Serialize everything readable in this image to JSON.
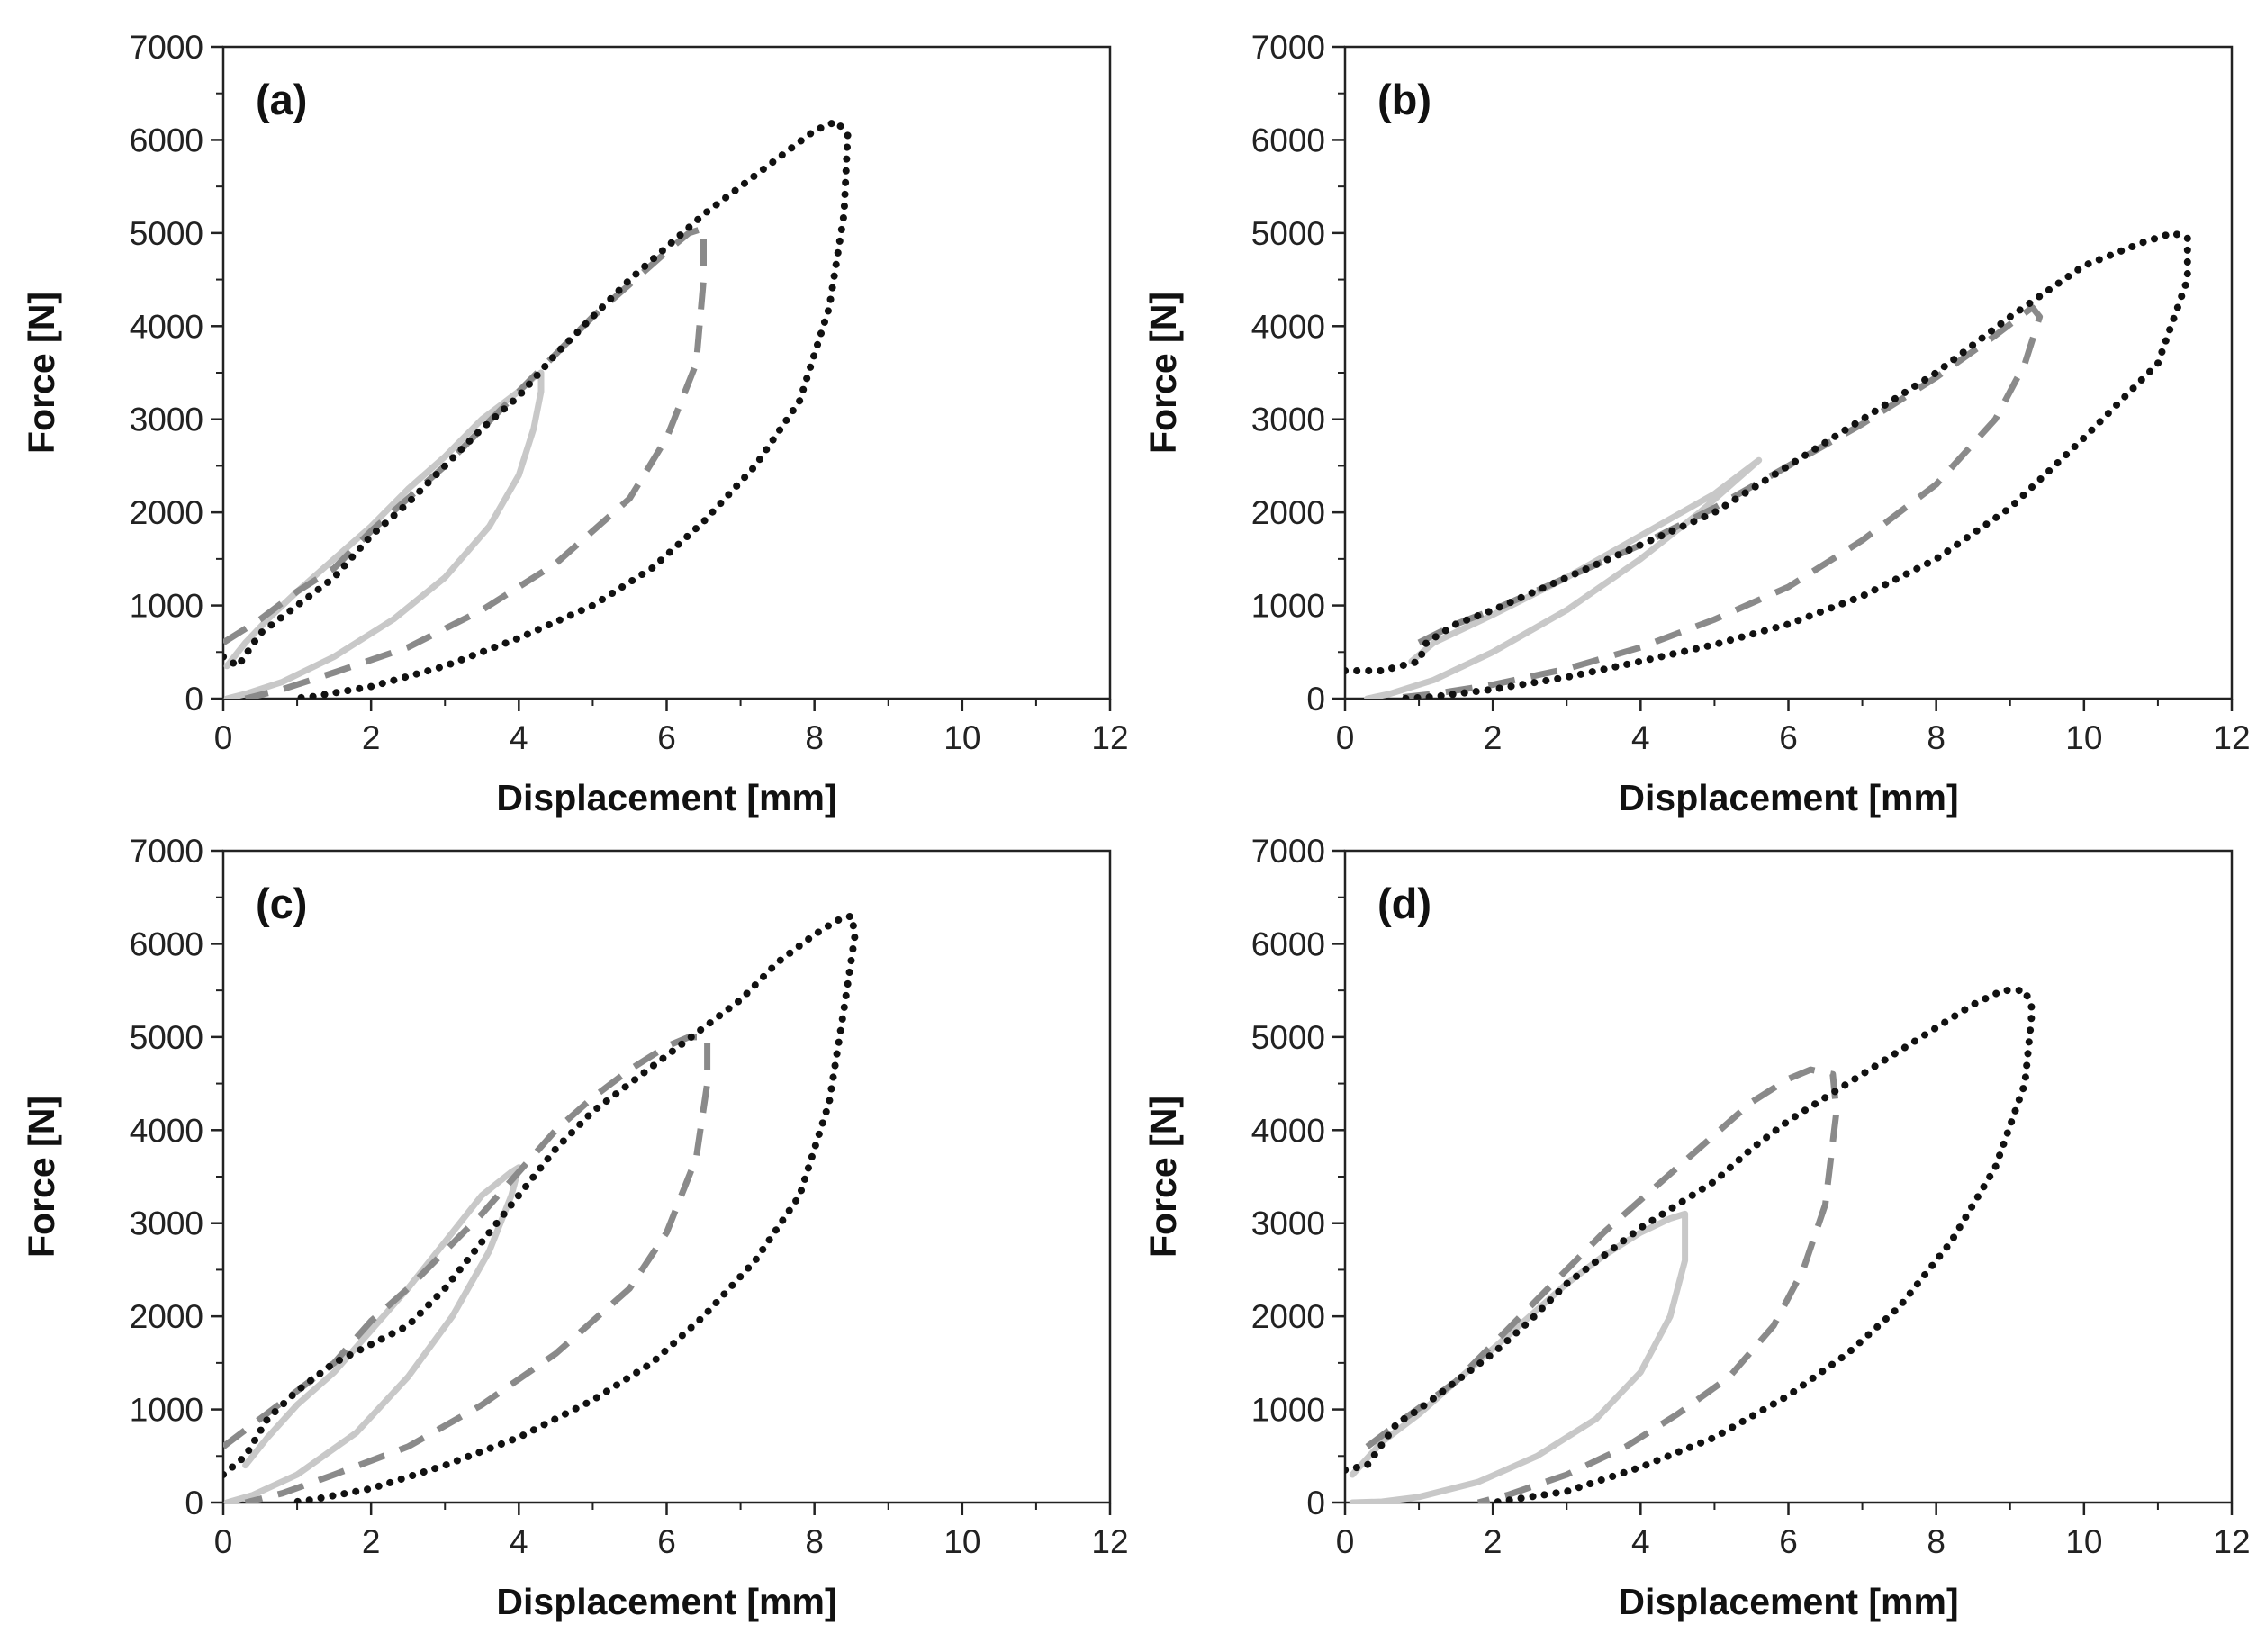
{
  "styles": {
    "solid": {
      "color": "#c8c8c8",
      "dash": "none",
      "width": 7
    },
    "dashed": {
      "color": "#8a8a8a",
      "dash": "30 18",
      "width": 7
    },
    "dotted": {
      "color": "#111111",
      "dash": "0.1 13",
      "width": 8
    }
  },
  "chart_data": [
    {
      "panel": "(a)",
      "type": "line",
      "xlabel": "Displacement [mm]",
      "ylabel": "Force [N]",
      "xlim": [
        0,
        12
      ],
      "ylim": [
        0,
        7000
      ],
      "xticks": [
        "0",
        "2",
        "4",
        "6",
        "8",
        "10",
        "12"
      ],
      "yticks": [
        "0",
        "1000",
        "2000",
        "3000",
        "4000",
        "5000",
        "6000",
        "7000"
      ],
      "grid": false,
      "series": [
        {
          "style": "solid",
          "x": [
            0.05,
            0.3,
            0.6,
            1.0,
            1.5,
            2.0,
            2.5,
            3.0,
            3.5,
            4.0,
            4.2,
            4.3,
            4.3,
            4.2,
            4.0,
            3.6,
            3.0,
            2.3,
            1.5,
            0.8,
            0.3,
            0.05
          ],
          "y": [
            350,
            600,
            850,
            1150,
            1500,
            1850,
            2250,
            2600,
            3000,
            3300,
            3450,
            3500,
            3300,
            2900,
            2400,
            1850,
            1300,
            850,
            450,
            180,
            50,
            0
          ]
        },
        {
          "style": "dashed",
          "x": [
            0,
            0.5,
            1.0,
            1.5,
            2.0,
            2.5,
            3.0,
            3.5,
            4.0,
            4.5,
            5.0,
            5.5,
            6.0,
            6.3,
            6.5,
            6.5,
            6.4,
            6.0,
            5.5,
            4.5,
            3.5,
            2.5,
            1.5,
            0.8,
            0.3
          ],
          "y": [
            600,
            850,
            1150,
            1400,
            1800,
            2150,
            2500,
            2900,
            3300,
            3700,
            4100,
            4450,
            4800,
            5000,
            5050,
            4500,
            3600,
            2800,
            2150,
            1450,
            950,
            550,
            280,
            100,
            0
          ]
        },
        {
          "style": "dotted",
          "x": [
            0,
            0.2,
            0.5,
            1.0,
            1.5,
            2.0,
            2.5,
            3.0,
            3.5,
            4.0,
            4.5,
            5.0,
            5.5,
            6.0,
            6.5,
            7.0,
            7.5,
            8.0,
            8.3,
            8.45,
            8.4,
            8.2,
            7.8,
            7.2,
            6.5,
            5.8,
            5.0,
            4.0,
            3.0,
            2.0,
            1.2,
            0.9
          ],
          "y": [
            450,
            350,
            700,
            1000,
            1300,
            1750,
            2100,
            2500,
            2900,
            3250,
            3700,
            4100,
            4500,
            4850,
            5200,
            5500,
            5800,
            6100,
            6200,
            6050,
            5200,
            4200,
            3200,
            2500,
            1900,
            1400,
            1000,
            650,
            350,
            130,
            20,
            0
          ]
        }
      ]
    },
    {
      "panel": "(b)",
      "type": "line",
      "xlabel": "Displacement [mm]",
      "ylabel": "Force [N]",
      "xlim": [
        0,
        12
      ],
      "ylim": [
        0,
        7000
      ],
      "xticks": [
        "0",
        "2",
        "4",
        "6",
        "8",
        "10",
        "12"
      ],
      "yticks": [
        "0",
        "1000",
        "2000",
        "3000",
        "4000",
        "5000",
        "6000",
        "7000"
      ],
      "grid": false,
      "series": [
        {
          "style": "solid",
          "x": [
            0.9,
            1.2,
            2.0,
            3.0,
            4.0,
            5.0,
            5.5,
            5.6,
            5.3,
            4.8,
            4.0,
            3.0,
            2.0,
            1.2,
            0.6,
            0.3
          ],
          "y": [
            400,
            600,
            900,
            1300,
            1750,
            2200,
            2500,
            2560,
            2350,
            2000,
            1500,
            950,
            500,
            200,
            50,
            0
          ]
        },
        {
          "style": "dashed",
          "x": [
            1.0,
            1.5,
            2.0,
            3.0,
            4.0,
            5.0,
            6.0,
            7.0,
            8.0,
            8.8,
            9.3,
            9.4,
            9.2,
            8.8,
            8.0,
            7.0,
            6.0,
            5.0,
            4.0,
            3.0,
            2.0,
            1.2,
            0.6
          ],
          "y": [
            600,
            800,
            950,
            1300,
            1650,
            2050,
            2500,
            2950,
            3450,
            3900,
            4200,
            4100,
            3600,
            3000,
            2300,
            1700,
            1200,
            850,
            550,
            320,
            150,
            50,
            0
          ]
        },
        {
          "style": "dotted",
          "x": [
            0,
            0.5,
            1.0,
            1.1,
            1.5,
            2.0,
            3.0,
            4.0,
            5.0,
            6.0,
            7.0,
            8.0,
            9.0,
            10.0,
            10.8,
            11.2,
            11.4,
            11.4,
            11.0,
            10.0,
            9.0,
            8.0,
            7.0,
            6.0,
            5.0,
            4.0,
            3.0,
            2.0,
            1.2,
            0.8
          ],
          "y": [
            300,
            300,
            400,
            600,
            800,
            950,
            1300,
            1650,
            2000,
            2500,
            3000,
            3500,
            4100,
            4650,
            4900,
            5000,
            4950,
            4500,
            3600,
            2800,
            2050,
            1500,
            1100,
            800,
            580,
            400,
            230,
            100,
            20,
            0
          ]
        }
      ]
    },
    {
      "panel": "(c)",
      "type": "line",
      "xlabel": "Displacement [mm]",
      "ylabel": "Force [N]",
      "xlim": [
        0,
        12
      ],
      "ylim": [
        0,
        7000
      ],
      "xticks": [
        "0",
        "2",
        "4",
        "6",
        "8",
        "10",
        "12"
      ],
      "yticks": [
        "0",
        "1000",
        "2000",
        "3000",
        "4000",
        "5000",
        "6000",
        "7000"
      ],
      "grid": false,
      "series": [
        {
          "style": "solid",
          "x": [
            0.3,
            0.6,
            1.0,
            1.5,
            2.0,
            2.5,
            3.0,
            3.5,
            3.9,
            4.0,
            3.9,
            3.6,
            3.1,
            2.5,
            1.8,
            1.0,
            0.4,
            0.05
          ],
          "y": [
            400,
            700,
            1050,
            1400,
            1850,
            2300,
            2800,
            3300,
            3550,
            3600,
            3300,
            2700,
            2000,
            1350,
            750,
            300,
            80,
            0
          ]
        },
        {
          "style": "dashed",
          "x": [
            0,
            0.5,
            1.0,
            1.5,
            2.0,
            2.5,
            3.0,
            3.5,
            4.0,
            4.5,
            5.0,
            5.5,
            6.0,
            6.3,
            6.55,
            6.55,
            6.4,
            6.0,
            5.5,
            4.5,
            3.5,
            2.5,
            1.5,
            0.8,
            0.3
          ],
          "y": [
            600,
            900,
            1200,
            1500,
            1950,
            2300,
            2700,
            3100,
            3550,
            4000,
            4350,
            4650,
            4900,
            5000,
            5000,
            4500,
            3700,
            2900,
            2300,
            1600,
            1050,
            600,
            300,
            100,
            0
          ]
        },
        {
          "style": "dotted",
          "x": [
            0,
            0.3,
            0.6,
            1.0,
            1.5,
            2.0,
            2.5,
            3.0,
            3.5,
            4.0,
            4.5,
            5.0,
            5.5,
            6.0,
            6.5,
            7.0,
            7.5,
            8.0,
            8.3,
            8.5,
            8.55,
            8.4,
            8.2,
            7.8,
            7.2,
            6.5,
            5.8,
            5.0,
            4.0,
            3.0,
            2.0,
            1.2,
            0.9
          ],
          "y": [
            300,
            500,
            900,
            1200,
            1500,
            1700,
            1900,
            2300,
            2800,
            3300,
            3800,
            4200,
            4500,
            4800,
            5100,
            5400,
            5800,
            6100,
            6250,
            6300,
            6100,
            5300,
            4300,
            3300,
            2600,
            2000,
            1500,
            1100,
            700,
            400,
            150,
            30,
            0
          ]
        }
      ]
    },
    {
      "panel": "(d)",
      "type": "line",
      "xlabel": "Displacement [mm]",
      "ylabel": "Force [N]",
      "xlim": [
        0,
        12
      ],
      "ylim": [
        0,
        7000
      ],
      "xticks": [
        "0",
        "2",
        "4",
        "6",
        "8",
        "10",
        "12"
      ],
      "yticks": [
        "0",
        "1000",
        "2000",
        "3000",
        "4000",
        "5000",
        "6000",
        "7000"
      ],
      "grid": false,
      "series": [
        {
          "style": "solid",
          "x": [
            0.1,
            0.5,
            1.0,
            1.5,
            2.0,
            2.5,
            3.0,
            3.5,
            4.0,
            4.4,
            4.6,
            4.6,
            4.4,
            4.0,
            3.4,
            2.6,
            1.8,
            1.0,
            0.5,
            0.1
          ],
          "y": [
            300,
            650,
            950,
            1300,
            1650,
            2000,
            2350,
            2650,
            2900,
            3050,
            3100,
            2600,
            2000,
            1400,
            900,
            500,
            220,
            60,
            10,
            0
          ]
        },
        {
          "style": "dashed",
          "x": [
            0.3,
            0.8,
            1.5,
            2.0,
            2.5,
            3.0,
            3.5,
            4.0,
            4.5,
            5.0,
            5.5,
            6.0,
            6.3,
            6.6,
            6.65,
            6.5,
            6.2,
            5.8,
            5.2,
            4.5,
            3.8,
            3.0,
            2.2,
            1.8
          ],
          "y": [
            600,
            900,
            1300,
            1700,
            2100,
            2500,
            2900,
            3250,
            3600,
            3950,
            4300,
            4550,
            4650,
            4600,
            4200,
            3200,
            2500,
            1900,
            1350,
            950,
            600,
            300,
            80,
            0
          ]
        },
        {
          "style": "dotted",
          "x": [
            0,
            0.3,
            0.7,
            1.0,
            1.5,
            2.0,
            2.5,
            3.0,
            3.5,
            4.0,
            4.5,
            5.0,
            5.5,
            6.0,
            6.5,
            7.0,
            7.5,
            8.0,
            8.5,
            8.9,
            9.2,
            9.3,
            9.2,
            8.8,
            8.2,
            7.5,
            6.8,
            6.0,
            5.0,
            4.0,
            3.0,
            2.0
          ],
          "y": [
            350,
            400,
            850,
            1000,
            1300,
            1600,
            1950,
            2350,
            2650,
            2950,
            3200,
            3450,
            3800,
            4100,
            4350,
            4600,
            4850,
            5100,
            5350,
            5500,
            5500,
            5300,
            4500,
            3600,
            2800,
            2100,
            1600,
            1150,
            700,
            380,
            120,
            0
          ]
        }
      ]
    }
  ]
}
